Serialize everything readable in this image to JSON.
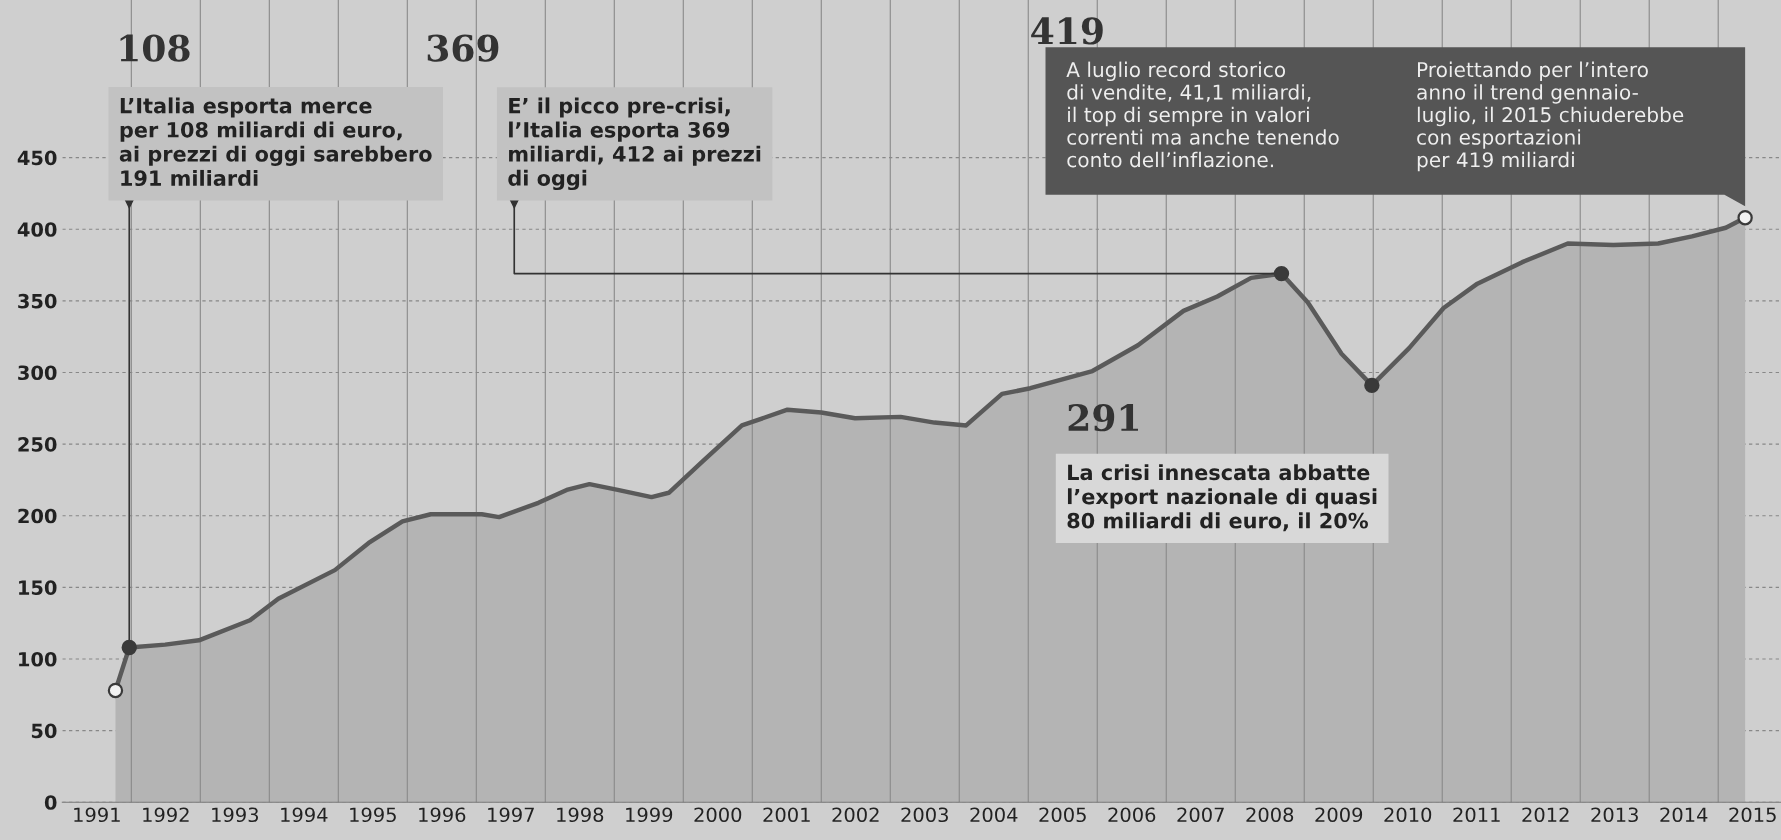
{
  "chart_data": {
    "type": "area",
    "series": [
      {
        "color": "#5a5a5a",
        "x": [
          1991.77,
          1991.97,
          1992.49,
          1992.98,
          1993.72,
          1994.13,
          1994.95,
          1995.44,
          1995.93,
          1996.34,
          1997.08,
          1997.33,
          1997.9,
          1998.31,
          1998.64,
          1999.05,
          1999.54,
          1999.79,
          2000.28,
          2000.85,
          2001.51,
          2002.0,
          2002.49,
          2003.15,
          2003.64,
          2004.1,
          2004.62,
          2005.03,
          2005.93,
          2006.59,
          2007.25,
          2007.74,
          2008.23,
          2008.67,
          2009.05,
          2009.54,
          2009.98,
          2010.52,
          2011.02,
          2011.51,
          2012.16,
          2012.82,
          2013.48,
          2014.13,
          2014.62,
          2015.11,
          2015.39
        ],
        "values": [
          78,
          108,
          110,
          113,
          127,
          142,
          162,
          181,
          196,
          201,
          201,
          199,
          209,
          218,
          222,
          218,
          213,
          216,
          238,
          263,
          274,
          272,
          268,
          269,
          265,
          263,
          285,
          289,
          301,
          319,
          343,
          353,
          366,
          369,
          349,
          313,
          291,
          317,
          345,
          362,
          377,
          390,
          389,
          390,
          395,
          401,
          408
        ]
      },
      {
        "type": "scatter",
        "color": "#3a3a3a",
        "marker": "circle",
        "x": [
          1991.97,
          2008.67,
          2009.98
        ],
        "values": [
          108,
          369,
          291
        ]
      },
      {
        "type": "scatter",
        "color": "#f2f2f2",
        "marker": "circle",
        "x": [
          1991.77,
          2015.39
        ],
        "values": [
          78,
          408
        ]
      }
    ],
    "xlim": [
      1991.0,
      2015.91
    ],
    "ylim": [
      0,
      560
    ],
    "yticks": [
      0,
      50,
      100,
      150,
      200,
      250,
      300,
      350,
      400,
      450
    ],
    "xticks": [
      {
        "value": 1991.5,
        "label": "1991"
      },
      {
        "value": 1992.5,
        "label": "1992"
      },
      {
        "value": 1993.5,
        "label": "1993"
      },
      {
        "value": 1994.5,
        "label": "1994"
      },
      {
        "value": 1995.5,
        "label": "1995"
      },
      {
        "value": 1996.5,
        "label": "1996"
      },
      {
        "value": 1997.5,
        "label": "1997"
      },
      {
        "value": 1998.5,
        "label": "1998"
      },
      {
        "value": 1999.5,
        "label": "1999"
      },
      {
        "value": 2000.5,
        "label": "2000"
      },
      {
        "value": 2001.5,
        "label": "2001"
      },
      {
        "value": 2002.5,
        "label": "2002"
      },
      {
        "value": 2003.5,
        "label": "2003"
      },
      {
        "value": 2004.5,
        "label": "2004"
      },
      {
        "value": 2005.5,
        "label": "2005"
      },
      {
        "value": 2006.5,
        "label": "2006"
      },
      {
        "value": 2007.5,
        "label": "2007"
      },
      {
        "value": 2008.5,
        "label": "2008"
      },
      {
        "value": 2009.5,
        "label": "2009"
      },
      {
        "value": 2010.5,
        "label": "2010"
      },
      {
        "value": 2011.5,
        "label": "2011"
      },
      {
        "value": 2012.5,
        "label": "2012"
      },
      {
        "value": 2013.5,
        "label": "2013"
      },
      {
        "value": 2014.5,
        "label": "2014"
      },
      {
        "value": 2015.5,
        "label": "2015"
      },
      {
        "value": 1992,
        "label": null
      },
      {
        "value": 1993,
        "label": null
      },
      {
        "value": 1994,
        "label": null
      },
      {
        "value": 1995,
        "label": null
      },
      {
        "value": 1996,
        "label": null
      },
      {
        "value": 1997,
        "label": null
      },
      {
        "value": 1998,
        "label": null
      },
      {
        "value": 1999,
        "label": null
      },
      {
        "value": 2000,
        "label": null
      },
      {
        "value": 2001,
        "label": null
      },
      {
        "value": 2002,
        "label": null
      },
      {
        "value": 2003,
        "label": null
      },
      {
        "value": 2004,
        "label": null
      },
      {
        "value": 2005,
        "label": null
      },
      {
        "value": 2006,
        "label": null
      },
      {
        "value": 2007,
        "label": null
      },
      {
        "value": 2008,
        "label": null
      },
      {
        "value": 2009,
        "label": null
      },
      {
        "value": 2010,
        "label": null
      },
      {
        "value": 2011,
        "label": null
      },
      {
        "value": 2012,
        "label": null
      },
      {
        "value": 2013,
        "label": null
      },
      {
        "value": 2014,
        "label": null
      },
      {
        "value": 2015,
        "label": null
      }
    ],
    "grid": true,
    "annotations": [
      "108",
      {
        "text": "L’Italia esporta merce\nper 108 miliardi di euro,\nai prezzi di oggi sarebbero\n191 miliardi",
        "x": 1991.97,
        "y": 108
      },
      "369",
      {
        "text": "E’ il picco pre-crisi,\nl’Italia esporta 369\nmiliardi, 412 ai prezzi\ndi oggi",
        "x": 2008.67,
        "y": 369
      },
      "291",
      "La crisi innescata abbatte\nl’export nazionale di quasi\n80 miliardi di euro, il 20%",
      "419",
      "A luglio record storico\ndi vendite, 41,1 miliardi,\nil top di sempre in valori\ncorrenti ma anche tenendo\nconto dell’inflazione.",
      "Proiettando per l’intero\nanno il trend gennaio-\nluglio, il 2015 chiuderebbe\ncon esportazioni\nper 419 miliardi"
    ]
  }
}
